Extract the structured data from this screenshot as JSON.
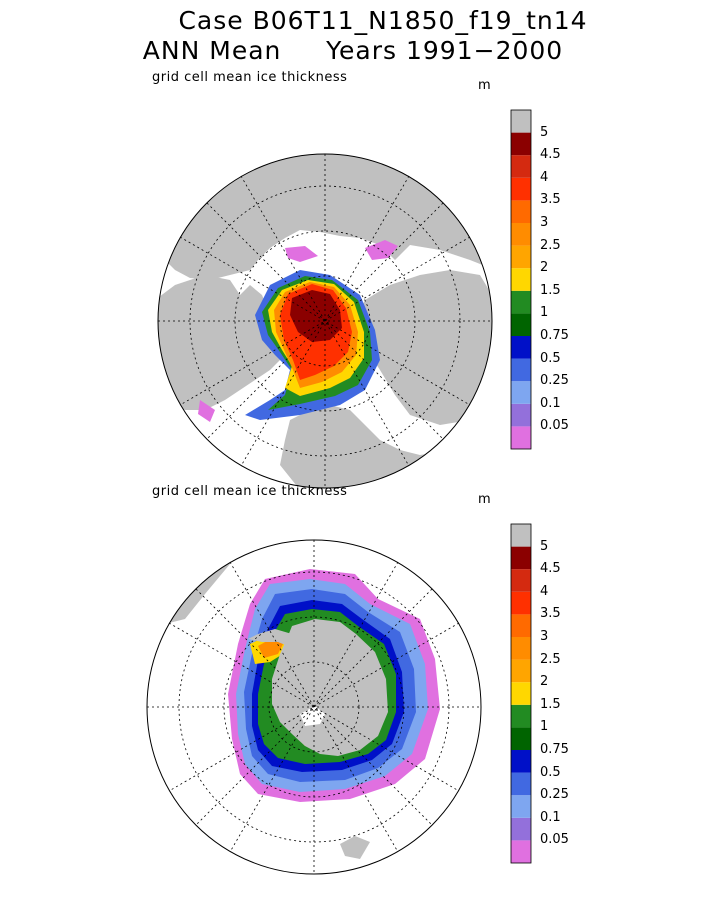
{
  "header": {
    "title_line1": "Case B06T11_N1850_f19_tn14",
    "title_line2": "ANN Mean     Years 1991−2000"
  },
  "colors": {
    "land": "#c0c0c0",
    "levels": [
      "#e070e0",
      "#9370db",
      "#7ea6f0",
      "#4169e1",
      "#0010c8",
      "#006400",
      "#228b22",
      "#ffd700",
      "#ffa500",
      "#ff8c00",
      "#ff6a00",
      "#ff3000",
      "#d42a10",
      "#8b0000",
      "#c0c0c0"
    ]
  },
  "panels": [
    {
      "id": "north",
      "label": "grid cell mean ice thickness",
      "unit": "m",
      "hemisphere": "Arctic",
      "colorbar_labels": [
        "5",
        "4.5",
        "4",
        "3.5",
        "3",
        "2.5",
        "2",
        "1.5",
        "1",
        "0.75",
        "0.5",
        "0.25",
        "0.1",
        "0.05"
      ]
    },
    {
      "id": "south",
      "label": "grid cell mean ice thickness",
      "unit": "m",
      "hemisphere": "Antarctic",
      "colorbar_labels": [
        "5",
        "4.5",
        "4",
        "3.5",
        "3",
        "2.5",
        "2",
        "1.5",
        "1",
        "0.75",
        "0.5",
        "0.25",
        "0.1",
        "0.05"
      ]
    }
  ]
}
